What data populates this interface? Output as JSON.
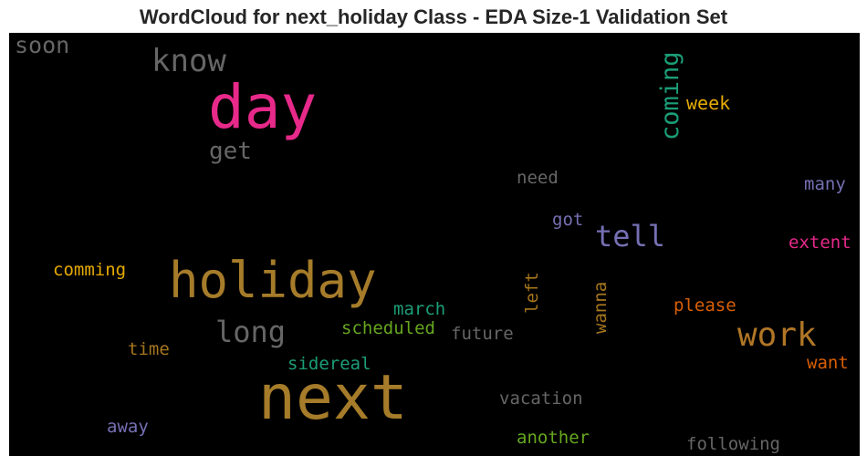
{
  "chart_data": {
    "type": "wordcloud",
    "title": "WordCloud for next_holiday Class - EDA Size-1 Validation Set",
    "background": "#000000",
    "words": [
      {
        "text": "next",
        "color": "#a67c2a"
      },
      {
        "text": "holiday",
        "color": "#a67c2a"
      },
      {
        "text": "day",
        "color": "#e7298a"
      },
      {
        "text": "work",
        "color": "#b07626"
      },
      {
        "text": "know",
        "color": "#666666"
      },
      {
        "text": "tell",
        "color": "#7570b3"
      },
      {
        "text": "long",
        "color": "#666666"
      },
      {
        "text": "coming",
        "color": "#1b9e77"
      },
      {
        "text": "soon",
        "color": "#666666"
      },
      {
        "text": "get",
        "color": "#666666"
      },
      {
        "text": "week",
        "color": "#e6ab02"
      },
      {
        "text": "need",
        "color": "#666666"
      },
      {
        "text": "many",
        "color": "#7570b3"
      },
      {
        "text": "got",
        "color": "#7570b3"
      },
      {
        "text": "extent",
        "color": "#e7298a"
      },
      {
        "text": "comming",
        "color": "#e6ab02"
      },
      {
        "text": "left",
        "color": "#a6761d"
      },
      {
        "text": "wanna",
        "color": "#a6761d"
      },
      {
        "text": "march",
        "color": "#1b9e77"
      },
      {
        "text": "please",
        "color": "#d95f02"
      },
      {
        "text": "scheduled",
        "color": "#66a61e"
      },
      {
        "text": "future",
        "color": "#666666"
      },
      {
        "text": "time",
        "color": "#a6761d"
      },
      {
        "text": "sidereal",
        "color": "#1b9e77"
      },
      {
        "text": "want",
        "color": "#d95f02"
      },
      {
        "text": "vacation",
        "color": "#666666"
      },
      {
        "text": "away",
        "color": "#7570b3"
      },
      {
        "text": "another",
        "color": "#66a61e"
      },
      {
        "text": "following",
        "color": "#666666"
      }
    ]
  }
}
